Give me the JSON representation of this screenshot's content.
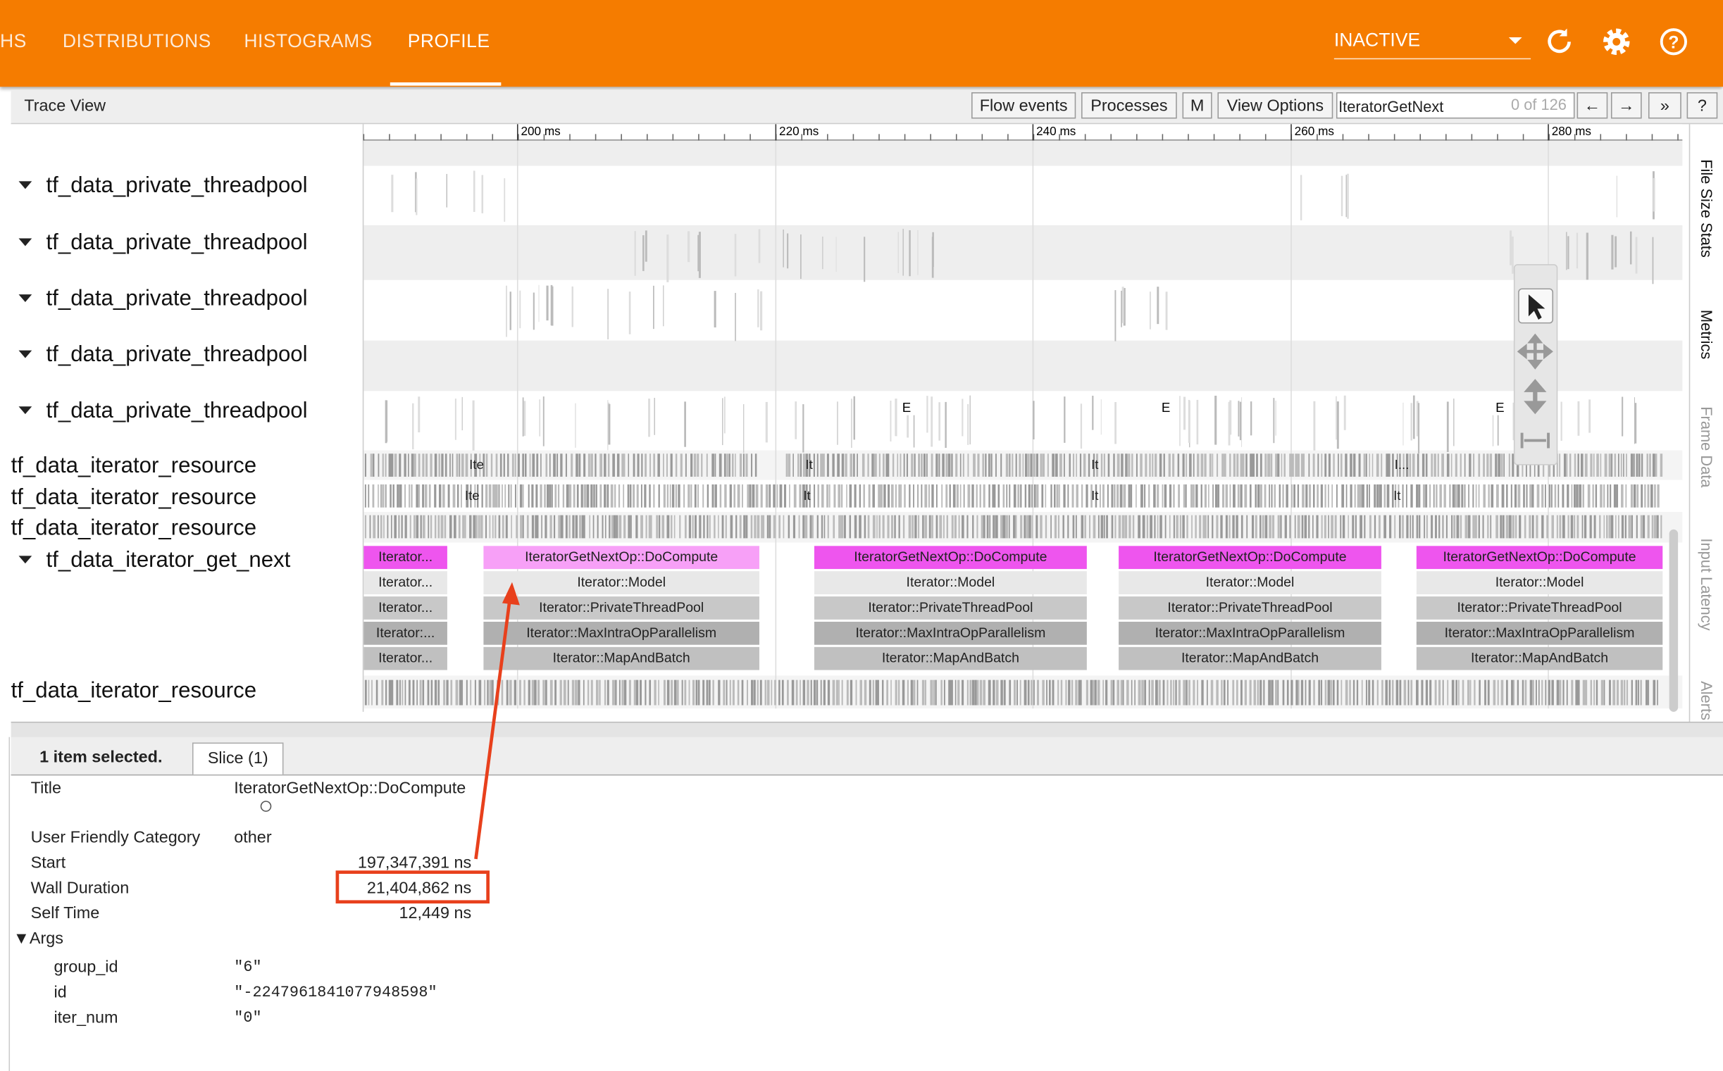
{
  "nav": {
    "tabs": [
      "HS",
      "DISTRIBUTIONS",
      "HISTOGRAMS",
      "PROFILE"
    ],
    "active": 3,
    "run_select": "INACTIVE"
  },
  "toolbar": {
    "title": "Trace View",
    "buttons": [
      "Flow events",
      "Processes",
      "M",
      "View Options"
    ],
    "search": "IteratorGetNext",
    "search_count": "0 of 126",
    "nav_buttons": [
      "←",
      "→",
      "»",
      "?"
    ]
  },
  "timeline": {
    "ticks": [
      "200 ms",
      "220 ms",
      "240 ms",
      "260 ms",
      "280 ms"
    ]
  },
  "tracks": [
    "tf_data_private_threadpool",
    "tf_data_private_threadpool",
    "tf_data_private_threadpool",
    "tf_data_private_threadpool",
    "tf_data_private_threadpool",
    "tf_data_iterator_resource",
    "tf_data_iterator_resource",
    "tf_data_iterator_resource",
    "tf_data_iterator_get_next",
    "tf_data_iterator_resource"
  ],
  "markers": [
    "E",
    "E",
    "E"
  ],
  "resource_labels": [
    [
      "Ite",
      "It",
      "It",
      "I..."
    ],
    [
      "Ite",
      "It",
      "It",
      "It"
    ]
  ],
  "slices": [
    [
      "Iterator...",
      "Iterator...",
      "Iterator...",
      "Iterator:...",
      "Iterator..."
    ],
    [
      "IteratorGetNextOp::DoCompute",
      "Iterator::Model",
      "Iterator::PrivateThreadPool",
      "Iterator::MaxIntraOpParallelism",
      "Iterator::MapAndBatch"
    ],
    [
      "IteratorGetNextOp::DoCompute",
      "Iterator::Model",
      "Iterator::PrivateThreadPool",
      "Iterator::MaxIntraOpParallelism",
      "Iterator::MapAndBatch"
    ],
    [
      "IteratorGetNextOp::DoCompute",
      "Iterator::Model",
      "Iterator::PrivateThreadPool",
      "Iterator::MaxIntraOpParallelism",
      "Iterator::MapAndBatch"
    ],
    [
      "IteratorGetNextOp::DoCompute",
      "Iterator::Model",
      "Iterator::PrivateThreadPool",
      "Iterator::MaxIntraOpParallelism",
      "Iterator::MapAndBatch"
    ]
  ],
  "side_tabs": [
    "File Size Stats",
    "Metrics",
    "Frame Data",
    "Input Latency",
    "Alerts"
  ],
  "details": {
    "summary": "1 item selected.",
    "tab": "Slice (1)",
    "rows": [
      [
        "Title",
        "IteratorGetNextOp::DoCompute"
      ],
      [
        "User Friendly Category",
        "other"
      ],
      [
        "Start",
        "197,347,391 ns"
      ],
      [
        "Wall Duration",
        "21,404,862 ns"
      ],
      [
        "Self Time",
        "12,449 ns"
      ]
    ],
    "args_heading": "▼Args",
    "args": [
      [
        "group_id",
        "\"6\""
      ],
      [
        "id",
        "\"-2247961841077948598\""
      ],
      [
        "iter_num",
        "\"0\""
      ]
    ]
  }
}
